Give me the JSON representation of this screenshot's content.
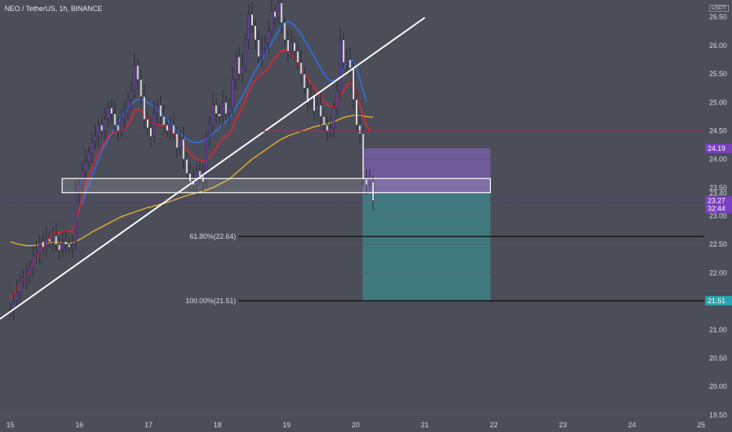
{
  "header": {
    "symbol": "NEO / TetherUS, 1h, BINANCE",
    "currency_badge": "USDT"
  },
  "colors": {
    "background": "#4b4e59",
    "candle_up": "#6b3fa0",
    "candle_down": "#e6e6ea",
    "ema_fast": "#e8232f",
    "ema_mid": "#2f6fe8",
    "ma_slow": "#e8b12c",
    "trendline": "#ffffff",
    "resistance": "#c2185b",
    "short_profit_zone": "#3a8a8a",
    "short_stop_zone": "#7b5fb0",
    "fib_line": "#111111",
    "price_tag": "#7b3fc2",
    "target_tag": "#26a6b0"
  },
  "chart_data": {
    "type": "candlestick",
    "ylim": [
      19.45,
      26.8
    ],
    "xlim": [
      14.85,
      25.05
    ],
    "x_ticks": [
      "15",
      "16",
      "17",
      "18",
      "19",
      "20",
      "21",
      "22",
      "23",
      "24",
      "25"
    ],
    "y_ticks": [
      "19.50",
      "20.00",
      "20.50",
      "21.00",
      "21.50",
      "22.00",
      "22.50",
      "23.00",
      "23.50",
      "24.00",
      "24.50",
      "25.00",
      "25.50",
      "26.00",
      "26.50"
    ],
    "price_labels": {
      "last_price": "23.27",
      "countdown": "32:44",
      "stop_level": "24.19",
      "entry_level": "23.40",
      "target_level": "21.51"
    },
    "fib_levels": [
      {
        "label": "61.80%(22.64)",
        "value": 22.64
      },
      {
        "label": "100.00%(21.51)",
        "value": 21.51
      }
    ],
    "resistance_level": 24.49,
    "support_box": {
      "from": 15.75,
      "to": 21.95,
      "low": 23.41,
      "high": 23.66
    },
    "position": {
      "from": 20.1,
      "to": 21.95,
      "entry": 23.4,
      "stop": 24.19,
      "target": 21.51
    },
    "trendline": {
      "x": [
        14.85,
        21.0
      ],
      "y": [
        21.19,
        26.49
      ]
    },
    "close": [
      21.35,
      21.5,
      21.65,
      21.85,
      21.9,
      21.95,
      22.1,
      22.3,
      22.35,
      22.55,
      22.45,
      22.6,
      22.55,
      22.65,
      22.5,
      22.4,
      22.55,
      22.5,
      22.45,
      22.5,
      23.4,
      23.55,
      23.8,
      23.95,
      24.1,
      24.3,
      24.4,
      24.6,
      24.5,
      24.7,
      24.9,
      24.8,
      24.6,
      24.5,
      24.7,
      24.8,
      25.05,
      25.2,
      25.65,
      25.4,
      25.1,
      24.7,
      24.55,
      24.4,
      24.8,
      24.95,
      24.75,
      24.6,
      24.5,
      24.6,
      24.45,
      24.2,
      24.35,
      24.0,
      23.75,
      23.6,
      23.55,
      23.8,
      23.7,
      23.6,
      24.4,
      24.6,
      24.95,
      24.8,
      24.75,
      25.0,
      24.8,
      24.9,
      25.4,
      25.8,
      25.5,
      25.65,
      26.1,
      26.55,
      26.35,
      26.1,
      25.8,
      25.95,
      26.05,
      26.25,
      26.6,
      26.5,
      26.75,
      26.4,
      26.1,
      25.9,
      26.05,
      25.9,
      25.7,
      25.5,
      25.25,
      25.0,
      25.1,
      24.85,
      24.95,
      24.75,
      24.6,
      24.5,
      24.55,
      24.9,
      25.2,
      26.1,
      25.7,
      25.75,
      25.6,
      25.05,
      24.6,
      24.45,
      23.65,
      23.55,
      23.6,
      23.27
    ],
    "ema_fast": [
      21.55,
      21.62,
      21.7,
      21.8,
      21.88,
      21.96,
      22.05,
      22.15,
      22.25,
      22.35,
      22.45,
      22.55,
      22.62,
      22.7,
      22.72,
      22.7,
      22.72,
      22.75,
      22.73,
      22.72,
      22.9,
      23.1,
      23.3,
      23.5,
      23.7,
      23.85,
      23.98,
      24.1,
      24.2,
      24.3,
      24.4,
      24.45,
      24.47,
      24.48,
      24.5,
      24.52,
      24.6,
      24.7,
      24.85,
      24.88,
      24.86,
      24.8,
      24.72,
      24.64,
      24.62,
      24.62,
      24.6,
      24.58,
      24.55,
      24.5,
      24.45,
      24.38,
      24.32,
      24.25,
      24.18,
      24.1,
      24.05,
      24.0,
      23.98,
      23.96,
      24.0,
      24.05,
      24.12,
      24.2,
      24.28,
      24.35,
      24.4,
      24.45,
      24.55,
      24.7,
      24.8,
      24.9,
      25.05,
      25.2,
      25.3,
      25.4,
      25.45,
      25.5,
      25.55,
      25.6,
      25.7,
      25.78,
      25.85,
      25.9,
      25.92,
      25.9,
      25.85,
      25.78,
      25.7,
      25.62,
      25.52,
      25.42,
      25.34,
      25.26,
      25.18,
      25.1,
      25.02,
      24.96,
      24.92,
      24.92,
      24.95,
      25.1,
      25.2,
      25.3,
      25.35,
      25.3,
      25.1,
      24.95,
      24.75,
      24.6,
      24.5,
      24.48
    ],
    "ema_mid": [
      null,
      null,
      null,
      null,
      null,
      null,
      null,
      null,
      null,
      null,
      null,
      null,
      null,
      null,
      null,
      null,
      null,
      null,
      null,
      null,
      null,
      null,
      23.2,
      23.4,
      23.55,
      23.7,
      23.85,
      24.0,
      24.15,
      24.25,
      24.35,
      24.45,
      24.55,
      24.65,
      24.75,
      24.82,
      24.9,
      24.95,
      25.02,
      25.05,
      25.05,
      25.03,
      25.0,
      24.96,
      24.92,
      24.88,
      24.82,
      24.76,
      24.7,
      24.63,
      24.57,
      24.5,
      24.45,
      24.4,
      24.35,
      24.32,
      24.3,
      24.29,
      24.3,
      24.32,
      24.35,
      24.4,
      24.45,
      24.5,
      24.55,
      24.6,
      24.66,
      24.72,
      24.8,
      24.9,
      25.0,
      25.1,
      25.2,
      25.32,
      25.45,
      25.55,
      25.65,
      25.75,
      25.85,
      25.95,
      26.05,
      26.15,
      26.25,
      26.35,
      26.4,
      26.42,
      26.4,
      26.35,
      26.28,
      26.2,
      26.1,
      26.0,
      25.9,
      25.8,
      25.7,
      25.6,
      25.5,
      25.42,
      25.38,
      25.38,
      25.4,
      25.5,
      25.6,
      25.7,
      25.75,
      25.72,
      25.6,
      25.4,
      25.2,
      25.0,
      null,
      null
    ],
    "ma_slow": [
      22.55,
      22.53,
      22.51,
      22.5,
      22.49,
      22.48,
      22.48,
      22.48,
      22.49,
      22.5,
      22.51,
      22.52,
      22.53,
      22.54,
      22.54,
      22.54,
      22.53,
      22.52,
      22.52,
      22.53,
      22.55,
      22.58,
      22.61,
      22.65,
      22.68,
      22.72,
      22.75,
      22.78,
      22.81,
      22.84,
      22.87,
      22.9,
      22.93,
      22.96,
      22.99,
      23.01,
      23.03,
      23.05,
      23.07,
      23.09,
      23.11,
      23.13,
      23.15,
      23.16,
      23.18,
      23.19,
      23.21,
      23.22,
      23.24,
      23.26,
      23.28,
      23.3,
      23.32,
      23.34,
      23.36,
      23.38,
      23.39,
      23.4,
      23.42,
      23.44,
      23.46,
      23.48,
      23.5,
      23.53,
      23.56,
      23.59,
      23.62,
      23.65,
      23.7,
      23.75,
      23.8,
      23.85,
      23.9,
      23.95,
      24.0,
      24.04,
      24.08,
      24.12,
      24.16,
      24.2,
      24.24,
      24.28,
      24.32,
      24.35,
      24.38,
      24.41,
      24.43,
      24.45,
      24.47,
      24.49,
      24.51,
      24.53,
      24.55,
      24.57,
      24.58,
      24.6,
      24.61,
      24.62,
      24.64,
      24.66,
      24.68,
      24.71,
      24.73,
      24.75,
      24.76,
      24.77,
      24.77,
      24.77,
      24.76,
      24.75,
      24.74,
      24.74
    ]
  }
}
